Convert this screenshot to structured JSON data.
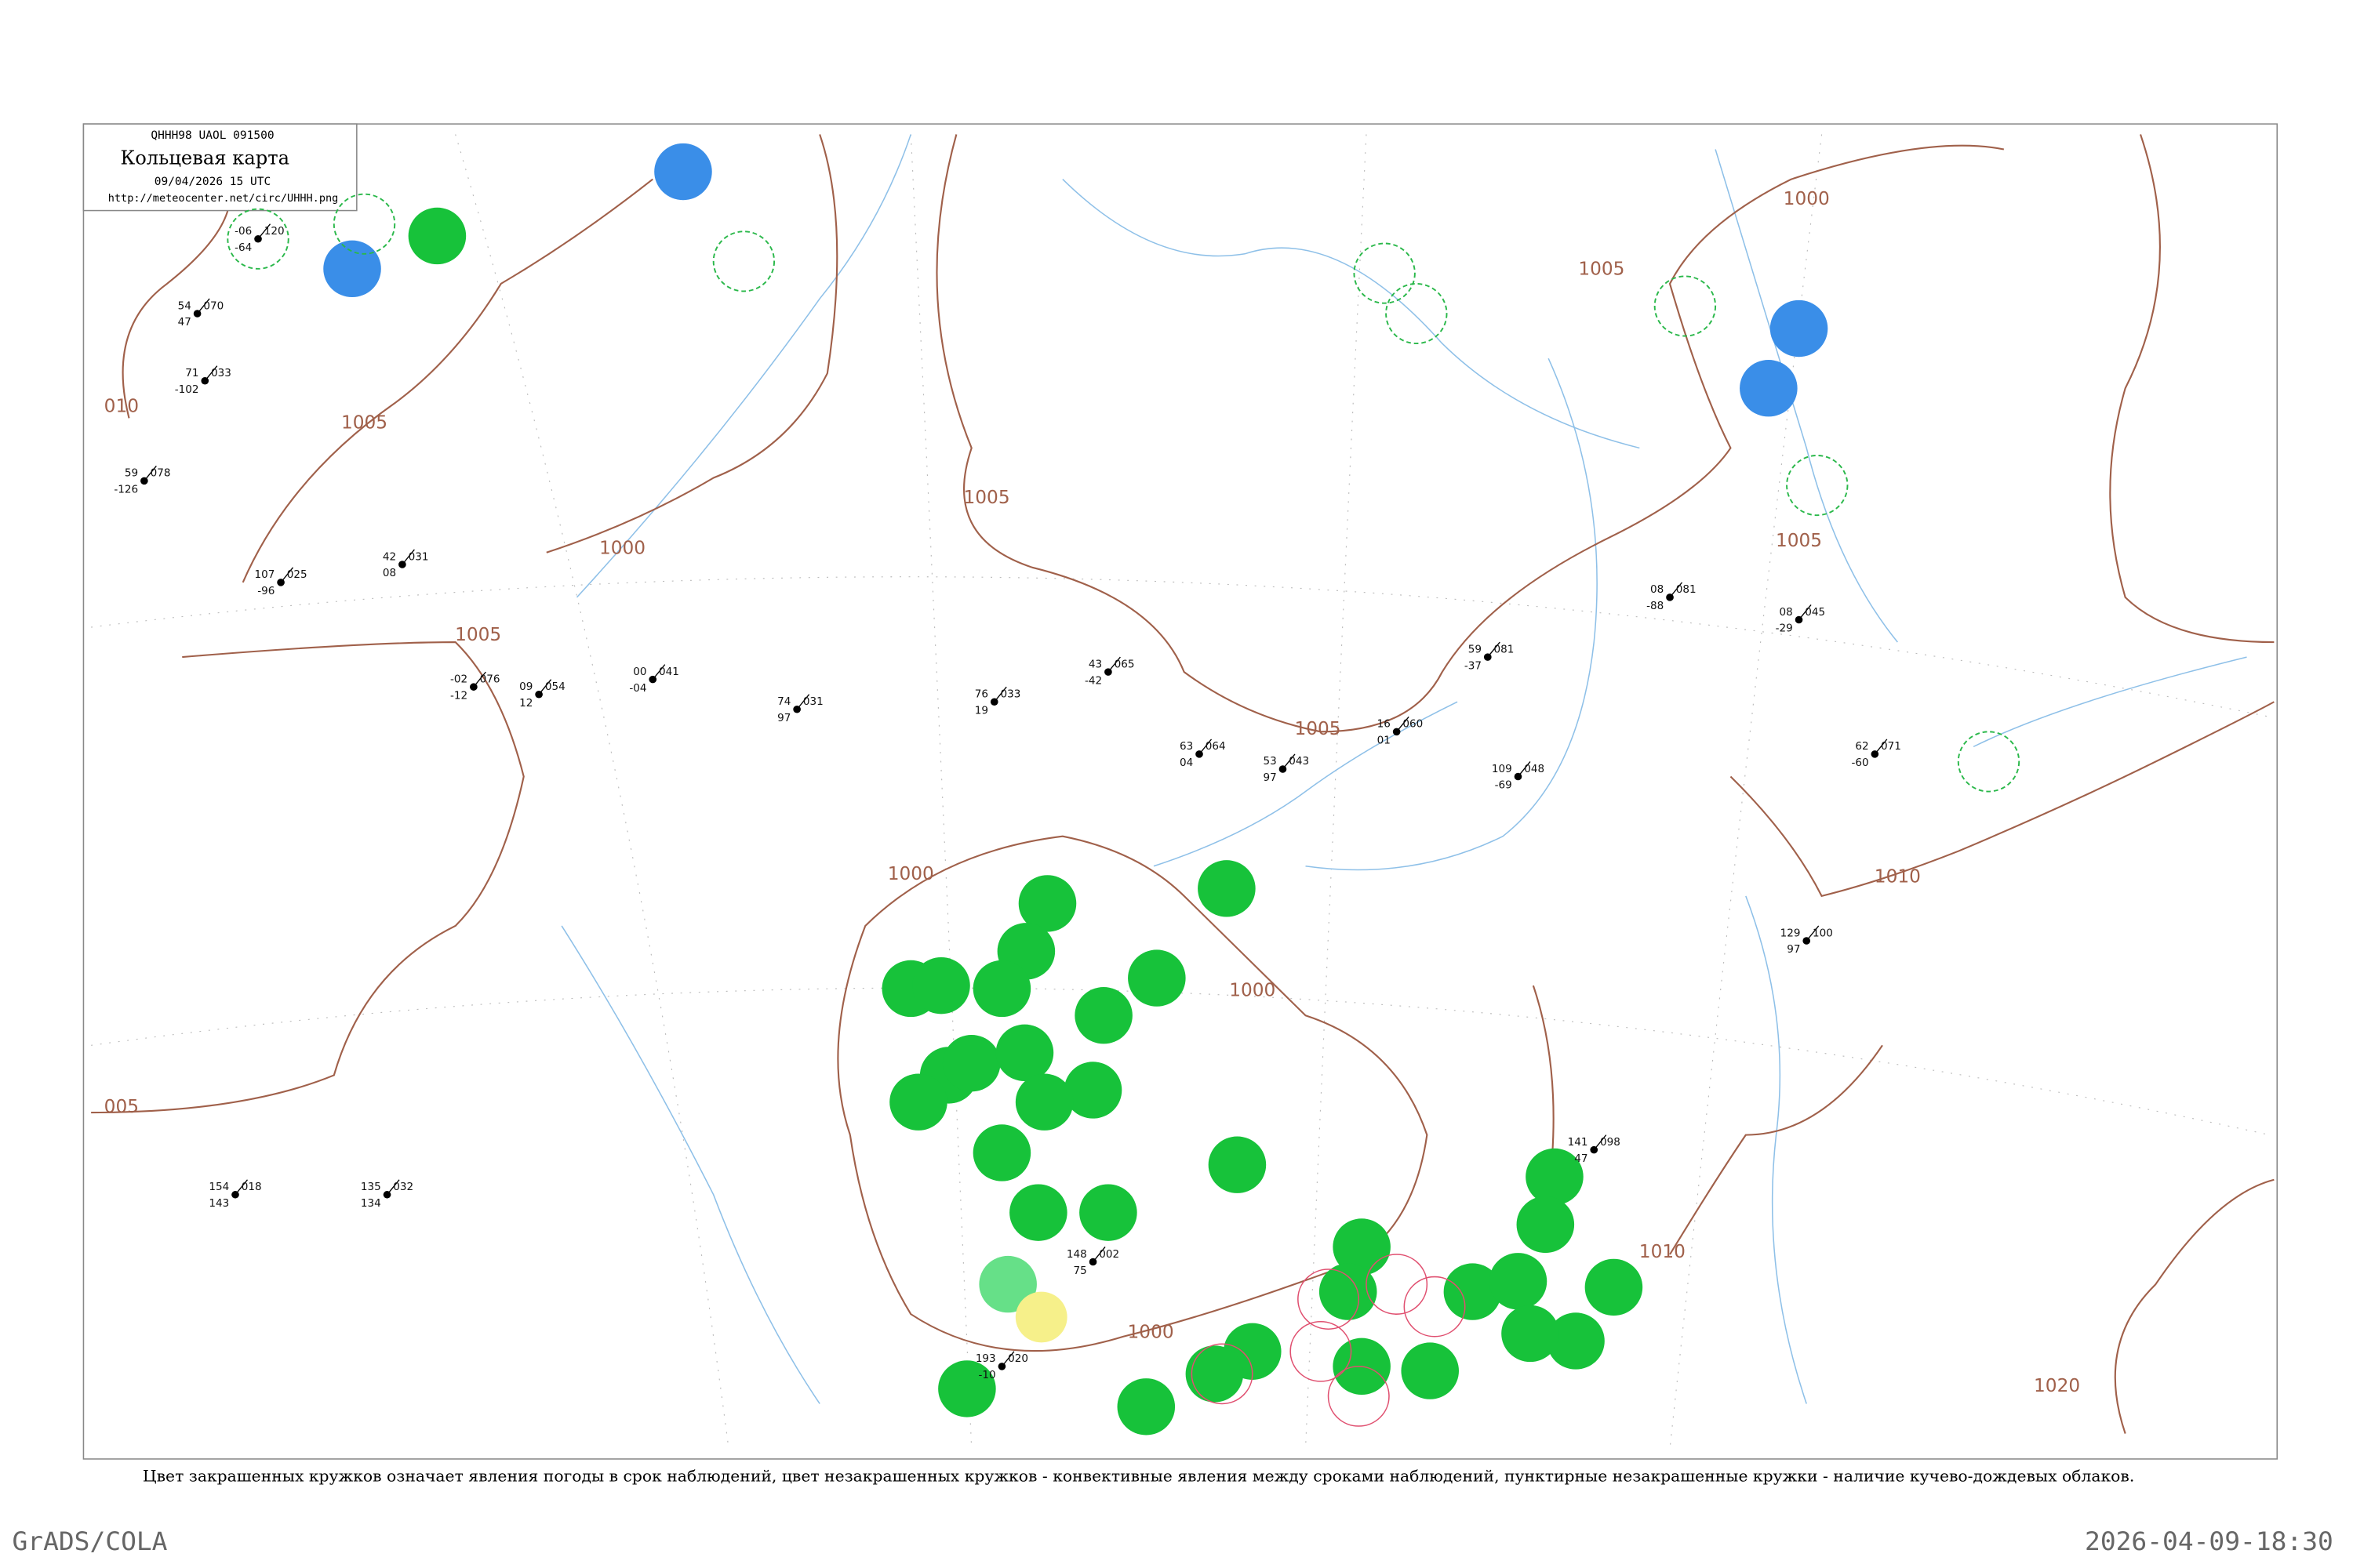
{
  "header": {
    "code": "QHHH98  UAOL  091500",
    "title": "Кольцевая карта",
    "time": "09/04/2026 15 UTC",
    "url": "http://meteocenter.net/circ/UHHH.png"
  },
  "caption": "Цвет закрашенных кружков означает явления погоды в срок наблюдений, цвет незакрашенных кружков - конвективные явления между сроками наблюдений, пунктирные незакрашенные кружки - наличие кучево-дождевых облаков.",
  "footer": {
    "left": "GrADS/COLA",
    "right": "2026-04-09-18:30"
  },
  "isobar_labels": [
    "010",
    "1005",
    "1005",
    "1000",
    "1005",
    "1005",
    "1000",
    "1000",
    "1000",
    "1005",
    "1000",
    "1005",
    "1010",
    "1010",
    "1020",
    "005"
  ],
  "stations": [
    {
      "temp": "-06",
      "pressure": "120",
      "dew": "-64"
    },
    {
      "temp": "54",
      "pressure": "070",
      "dew": "47"
    },
    {
      "temp": "71",
      "pressure": "033",
      "dew": "-102"
    },
    {
      "temp": "59",
      "pressure": "078",
      "dew": "-126"
    },
    {
      "temp": "107",
      "pressure": "025",
      "dew": "-96"
    },
    {
      "temp": "42",
      "pressure": "031",
      "dew": "08"
    },
    {
      "temp": "-02",
      "pressure": "076",
      "dew": "-12"
    },
    {
      "temp": "09",
      "pressure": "054",
      "dew": "12"
    },
    {
      "temp": "00",
      "pressure": "041",
      "dew": "-04"
    },
    {
      "temp": "74",
      "pressure": "031",
      "dew": "97"
    },
    {
      "temp": "76",
      "pressure": "033",
      "dew": "19"
    },
    {
      "temp": "43",
      "pressure": "065",
      "dew": "-42"
    },
    {
      "temp": "63",
      "pressure": "064",
      "dew": "04"
    },
    {
      "temp": "53",
      "pressure": "043",
      "dew": "97"
    },
    {
      "temp": "16",
      "pressure": "060",
      "dew": "01"
    },
    {
      "temp": "109",
      "pressure": "048",
      "dew": "-69"
    },
    {
      "temp": "62",
      "pressure": "071",
      "dew": "-60"
    },
    {
      "temp": "08",
      "pressure": "081",
      "dew": "-88"
    },
    {
      "temp": "08",
      "pressure": "045",
      "dew": "-29"
    },
    {
      "temp": "59",
      "pressure": "081",
      "dew": "-37"
    },
    {
      "temp": "135",
      "pressure": "032",
      "dew": "134"
    },
    {
      "temp": "154",
      "pressure": "018",
      "dew": "143"
    },
    {
      "temp": "141",
      "pressure": "098",
      "dew": "47"
    },
    {
      "temp": "129",
      "pressure": "100",
      "dew": "97"
    },
    {
      "temp": "148",
      "pressure": "002",
      "dew": "75"
    },
    {
      "temp": "193",
      "pressure": "020",
      "dew": "-10"
    }
  ]
}
